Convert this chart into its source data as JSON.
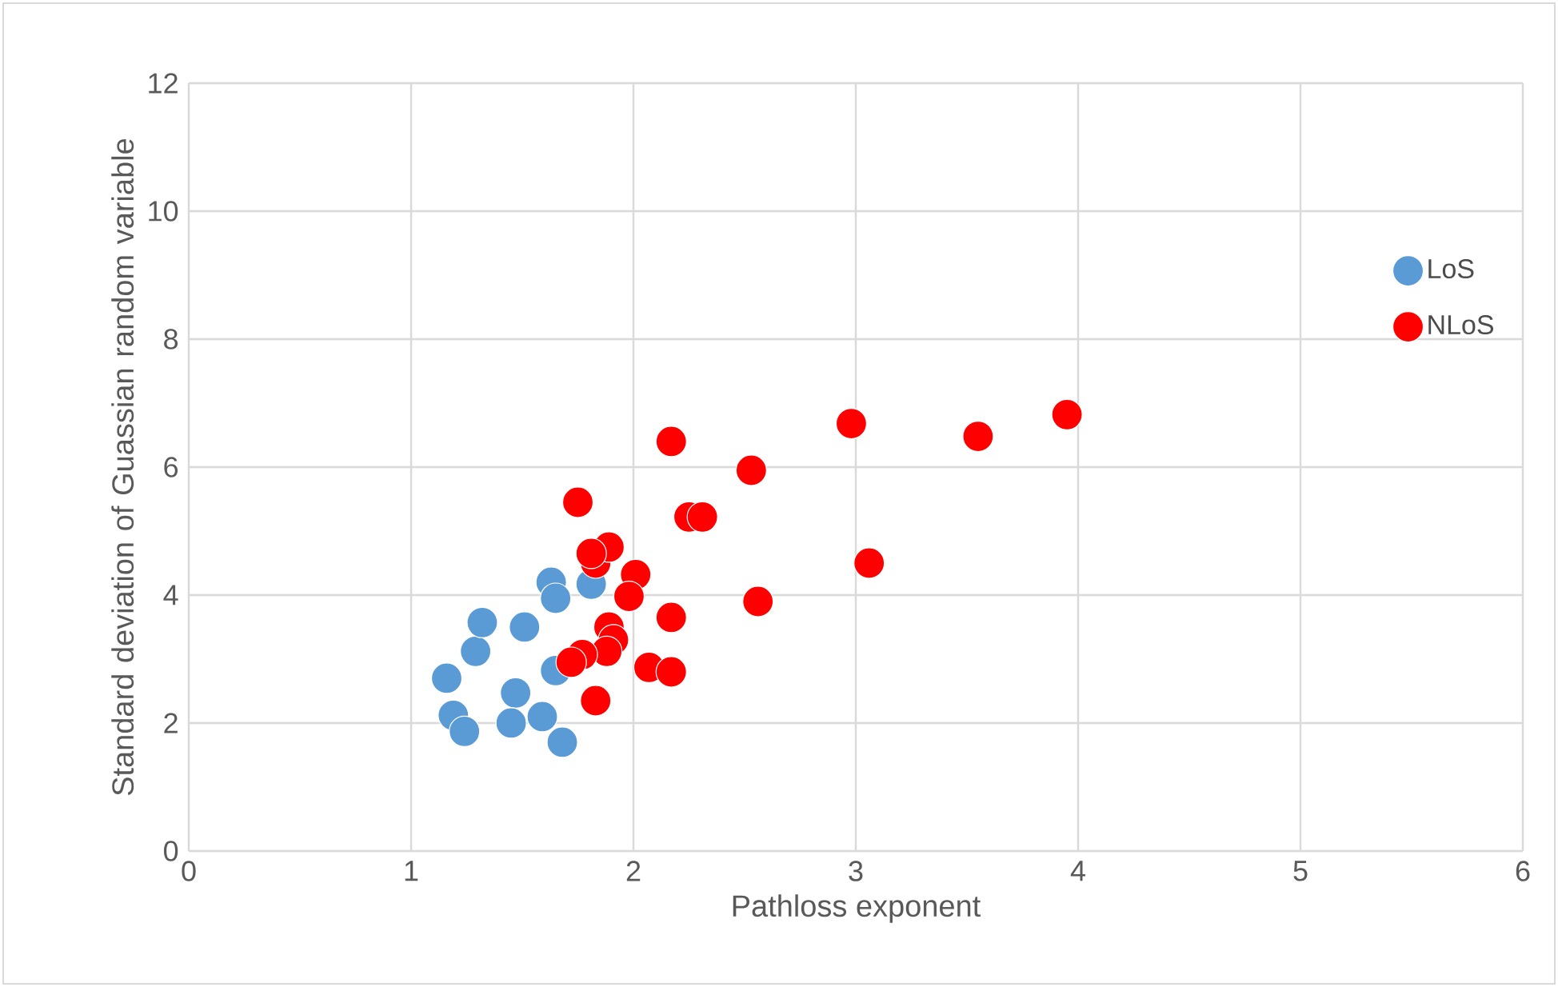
{
  "chart_data": {
    "type": "scatter",
    "xlabel": "Pathloss exponent",
    "ylabel": "Standard deviation of Guassian random variable",
    "xlim": [
      0,
      6
    ],
    "xticks": [
      0,
      1,
      2,
      3,
      4,
      5,
      6
    ],
    "ylim": [
      0,
      12
    ],
    "yticks": [
      0,
      2,
      4,
      6,
      8,
      10,
      12
    ],
    "grid": true,
    "legend": "right",
    "marker": "circle",
    "series": [
      {
        "name": "LoS",
        "color": "#5b9bd5",
        "x": [
          1.16,
          1.19,
          1.24,
          1.29,
          1.32,
          1.51,
          1.47,
          1.45,
          1.59,
          1.68,
          1.65,
          1.63,
          1.65,
          1.81
        ],
        "values": [
          2.7,
          2.12,
          1.87,
          3.12,
          3.57,
          3.5,
          2.47,
          2.0,
          2.1,
          1.7,
          2.82,
          4.2,
          3.95,
          4.17
        ]
      },
      {
        "name": "NLoS",
        "color": "#ff0000",
        "x": [
          1.75,
          1.83,
          1.89,
          2.01,
          1.98,
          1.89,
          1.91,
          1.88,
          1.77,
          1.72,
          1.83,
          2.07,
          2.17,
          2.17,
          2.17,
          2.25,
          2.31,
          2.53,
          2.56,
          2.98,
          3.06,
          3.55,
          3.95,
          1.81
        ],
        "values": [
          5.45,
          4.5,
          4.75,
          4.32,
          3.98,
          3.5,
          3.3,
          3.12,
          3.07,
          2.95,
          2.35,
          2.87,
          2.8,
          3.65,
          6.4,
          5.22,
          5.22,
          5.95,
          3.9,
          6.68,
          4.5,
          6.48,
          6.82,
          4.65
        ]
      }
    ]
  }
}
